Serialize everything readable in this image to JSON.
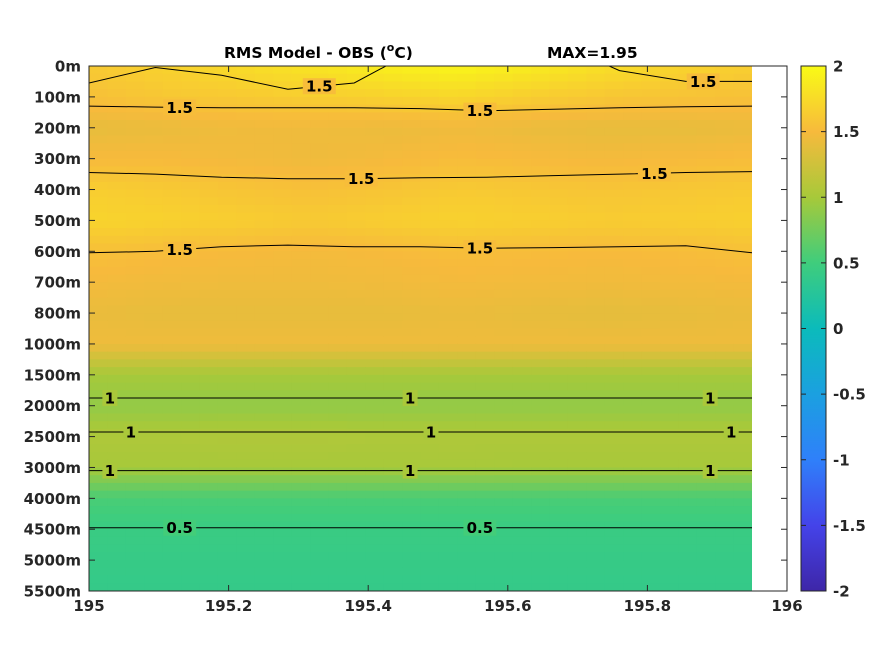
{
  "chart_data": {
    "type": "heatmap",
    "title_main": "RMS Model - OBS (",
    "title_unit_sup": "o",
    "title_unit": "C)",
    "title_max": "MAX=1.95",
    "x_ticks": [
      "195",
      "195.2",
      "195.4",
      "195.6",
      "195.8",
      "196"
    ],
    "x_values": [
      195,
      195.2,
      195.4,
      195.6,
      195.8,
      196
    ],
    "xlim": [
      195,
      196
    ],
    "data_xmax": 195.95,
    "y_ticks": [
      "0m",
      "100m",
      "200m",
      "300m",
      "400m",
      "500m",
      "600m",
      "700m",
      "800m",
      "1000m",
      "1500m",
      "2000m",
      "2500m",
      "3000m",
      "4000m",
      "4500m",
      "5000m",
      "5500m"
    ],
    "colorbar_ticks": [
      "2",
      "1.5",
      "1",
      "0.5",
      "0",
      "-0.5",
      "-1",
      "-1.5",
      "-2"
    ],
    "colorbar_values": [
      2,
      1.5,
      1,
      0.5,
      0,
      -0.5,
      -1,
      -1.5,
      -2
    ],
    "clim": [
      -2,
      2
    ],
    "colormap": "parula",
    "rows": [
      {
        "level": "0m",
        "values": [
          1.62,
          1.68,
          1.75,
          1.82,
          1.9,
          1.95,
          1.88,
          1.78,
          1.7,
          1.65
        ]
      },
      {
        "level": "100m",
        "values": [
          1.55,
          1.6,
          1.62,
          1.65,
          1.68,
          1.72,
          1.65,
          1.6,
          1.57,
          1.55
        ]
      },
      {
        "level": "200m",
        "values": [
          1.4,
          1.42,
          1.45,
          1.45,
          1.43,
          1.45,
          1.42,
          1.4,
          1.4,
          1.42
        ]
      },
      {
        "level": "300m",
        "values": [
          1.5,
          1.5,
          1.47,
          1.45,
          1.48,
          1.52,
          1.5,
          1.48,
          1.5,
          1.52
        ]
      },
      {
        "level": "400m",
        "values": [
          1.65,
          1.62,
          1.58,
          1.55,
          1.58,
          1.62,
          1.6,
          1.58,
          1.6,
          1.62
        ]
      },
      {
        "level": "500m",
        "values": [
          1.7,
          1.68,
          1.65,
          1.62,
          1.65,
          1.68,
          1.66,
          1.64,
          1.65,
          1.67
        ]
      },
      {
        "level": "600m",
        "values": [
          1.55,
          1.52,
          1.5,
          1.48,
          1.5,
          1.53,
          1.52,
          1.5,
          1.52,
          1.55
        ]
      },
      {
        "level": "700m",
        "values": [
          1.48,
          1.46,
          1.45,
          1.45,
          1.46,
          1.48,
          1.47,
          1.46,
          1.47,
          1.48
        ]
      },
      {
        "level": "800m",
        "values": [
          1.42,
          1.4,
          1.4,
          1.4,
          1.4,
          1.42,
          1.4,
          1.38,
          1.4,
          1.42
        ]
      },
      {
        "level": "1000m",
        "values": [
          1.45,
          1.45,
          1.45,
          1.45,
          1.45,
          1.45,
          1.45,
          1.45,
          1.45,
          1.45
        ]
      },
      {
        "level": "1500m",
        "values": [
          1.0,
          1.0,
          1.0,
          1.0,
          1.0,
          1.0,
          1.0,
          1.0,
          1.0,
          1.0
        ]
      },
      {
        "level": "2000m",
        "values": [
          0.9,
          0.9,
          0.9,
          0.9,
          0.9,
          0.9,
          0.9,
          0.9,
          0.9,
          0.9
        ]
      },
      {
        "level": "2500m",
        "values": [
          1.05,
          1.05,
          1.06,
          1.06,
          1.05,
          1.05,
          1.05,
          1.05,
          1.05,
          1.05
        ]
      },
      {
        "level": "3000m",
        "values": [
          1.0,
          1.0,
          1.0,
          1.0,
          1.0,
          1.01,
          1.0,
          1.0,
          1.0,
          1.0
        ]
      },
      {
        "level": "4000m",
        "values": [
          0.55,
          0.55,
          0.55,
          0.55,
          0.55,
          0.55,
          0.55,
          0.55,
          0.55,
          0.55
        ]
      },
      {
        "level": "4500m",
        "values": [
          0.45,
          0.45,
          0.45,
          0.45,
          0.45,
          0.45,
          0.45,
          0.45,
          0.45,
          0.45
        ]
      },
      {
        "level": "5000m",
        "values": [
          0.42,
          0.42,
          0.42,
          0.42,
          0.42,
          0.42,
          0.42,
          0.42,
          0.42,
          0.42
        ]
      },
      {
        "level": "5500m",
        "values": [
          0.4,
          0.4,
          0.4,
          0.4,
          0.4,
          0.4,
          0.4,
          0.4,
          0.4,
          0.4
        ]
      }
    ],
    "contours": [
      {
        "level": 1.5,
        "label": "1.5",
        "y_levels": [
          0.55,
          0.05,
          0.3,
          0.75,
          0.55,
          -0.6,
          -0.8,
          -0.8,
          0.15,
          0.5,
          0.5
        ],
        "labels_at_x": [
          195.33,
          195.88
        ]
      },
      {
        "level": 1.5,
        "label": "1.5",
        "y_levels": [
          1.3,
          1.33,
          1.35,
          1.35,
          1.35,
          1.38,
          1.45,
          1.4,
          1.35,
          1.32,
          1.3
        ],
        "labels_at_x": [
          195.13,
          195.56
        ]
      },
      {
        "level": 1.5,
        "label": "1.5",
        "y_levels": [
          3.45,
          3.5,
          3.6,
          3.65,
          3.65,
          3.62,
          3.6,
          3.55,
          3.5,
          3.45,
          3.42
        ],
        "labels_at_x": [
          195.39,
          195.81
        ]
      },
      {
        "level": 1.5,
        "label": "1.5",
        "y_levels": [
          6.05,
          6.0,
          5.85,
          5.8,
          5.85,
          5.85,
          5.9,
          5.88,
          5.85,
          5.82,
          6.05
        ],
        "labels_at_x": [
          195.13,
          195.56
        ]
      },
      {
        "level": 1,
        "label": "1",
        "y_levels": [
          10.75,
          10.75,
          10.75,
          10.75,
          10.75,
          10.75,
          10.75,
          10.75,
          10.75,
          10.75,
          10.75
        ],
        "labels_at_x": [
          195.03,
          195.46,
          195.89
        ]
      },
      {
        "level": 1,
        "label": "1",
        "y_levels": [
          11.85,
          11.85,
          11.85,
          11.85,
          11.85,
          11.85,
          11.85,
          11.85,
          11.85,
          11.85,
          11.85
        ],
        "labels_at_x": [
          195.06,
          195.49,
          195.92
        ]
      },
      {
        "level": 1,
        "label": "1",
        "y_levels": [
          13.1,
          13.1,
          13.1,
          13.1,
          13.1,
          13.1,
          13.1,
          13.1,
          13.1,
          13.1,
          13.1
        ],
        "labels_at_x": [
          195.03,
          195.46,
          195.89
        ]
      },
      {
        "level": 0.5,
        "label": "0.5",
        "y_levels": [
          14.95,
          14.95,
          14.95,
          14.95,
          14.95,
          14.95,
          14.95,
          14.95,
          14.95,
          14.95,
          14.95
        ],
        "labels_at_x": [
          195.13,
          195.56
        ]
      }
    ]
  }
}
